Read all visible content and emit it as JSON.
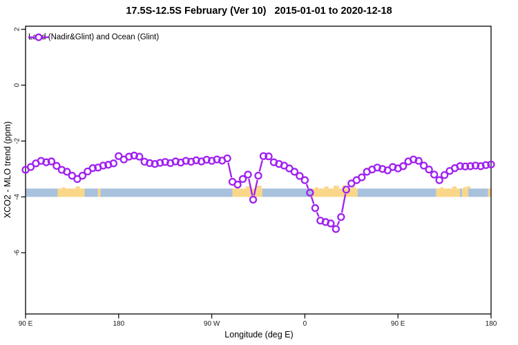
{
  "title": "17.5S-12.5S February (Ver 10)   2015-01-01 to 2020-12-18",
  "legend": {
    "label": "Land (Nadir&Glint) and Ocean (Glint)"
  },
  "colors": {
    "line": "#A020F0",
    "marker": "#A020F0",
    "ocean_band": "#A8C2DD",
    "land_band": "#FAD689",
    "axis": "#000000",
    "tick_label": "#1a1a1a",
    "background": "#ffffff"
  },
  "chart_data": {
    "type": "line",
    "title": "17.5S-12.5S February (Ver 10)   2015-01-01 to 2020-12-18",
    "xlabel": "Longitude (deg E)",
    "ylabel": "XCO2 - MLO trend (ppm)",
    "xlim": [
      90,
      540
    ],
    "ylim": [
      -8.19,
      2.11
    ],
    "grid": false,
    "legend_position": "top-left",
    "xticks": [
      {
        "value": 90,
        "label": "90 E"
      },
      {
        "value": 180,
        "label": "180"
      },
      {
        "value": 270,
        "label": "90 W"
      },
      {
        "value": 360,
        "label": "0"
      },
      {
        "value": 450,
        "label": "90 E"
      },
      {
        "value": 540,
        "label": "180"
      }
    ],
    "yticks": [
      {
        "value": 2,
        "label": "2"
      },
      {
        "value": 0,
        "label": "0"
      },
      {
        "value": -2,
        "label": "-2"
      },
      {
        "value": -4,
        "label": "-4"
      },
      {
        "value": -6,
        "label": "-6"
      }
    ],
    "series": [
      {
        "name": "Land (Nadir&Glint) and Ocean (Glint)",
        "marker": "open-circle",
        "x": [
          90,
          95,
          100,
          105,
          110,
          115,
          120,
          125,
          130,
          135,
          140,
          145,
          150,
          155,
          160,
          165,
          170,
          175,
          180,
          185,
          190,
          195,
          200,
          205,
          210,
          215,
          220,
          225,
          230,
          235,
          240,
          245,
          250,
          255,
          260,
          265,
          270,
          275,
          280,
          285,
          290,
          295,
          300,
          305,
          310,
          315,
          320,
          325,
          330,
          335,
          340,
          345,
          350,
          355,
          360,
          365,
          370,
          375,
          380,
          385,
          390,
          395,
          400,
          405,
          410,
          415,
          420,
          425,
          430,
          435,
          440,
          445,
          450,
          455,
          460,
          465,
          470,
          475,
          480,
          485,
          490,
          495,
          500,
          505,
          510,
          515,
          520,
          525,
          530,
          535,
          540
        ],
        "y": [
          -3.03,
          -2.93,
          -2.8,
          -2.71,
          -2.76,
          -2.73,
          -2.89,
          -3.03,
          -3.1,
          -3.24,
          -3.36,
          -3.24,
          -3.09,
          -2.97,
          -2.95,
          -2.88,
          -2.85,
          -2.8,
          -2.54,
          -2.66,
          -2.56,
          -2.52,
          -2.56,
          -2.74,
          -2.79,
          -2.82,
          -2.78,
          -2.75,
          -2.79,
          -2.73,
          -2.77,
          -2.71,
          -2.74,
          -2.69,
          -2.73,
          -2.67,
          -2.71,
          -2.66,
          -2.7,
          -2.62,
          -3.46,
          -3.56,
          -3.36,
          -3.2,
          -4.1,
          -3.24,
          -2.54,
          -2.55,
          -2.76,
          -2.82,
          -2.88,
          -2.98,
          -3.1,
          -3.25,
          -3.4,
          -3.85,
          -4.4,
          -4.85,
          -4.9,
          -4.95,
          -5.15,
          -4.72,
          -3.74,
          -3.52,
          -3.4,
          -3.3,
          -3.1,
          -3.02,
          -2.95,
          -3.0,
          -3.05,
          -2.93,
          -2.98,
          -2.9,
          -2.73,
          -2.66,
          -2.71,
          -2.88,
          -3.02,
          -3.2,
          -3.4,
          -3.22,
          -3.07,
          -2.97,
          -2.9,
          -2.91,
          -2.9,
          -2.88,
          -2.9,
          -2.86,
          -2.84
        ]
      }
    ],
    "surface_band": {
      "description": "land/ocean indicator strip",
      "y_top": -3.7,
      "y_bottom": -4.0,
      "segments": [
        {
          "type": "ocean",
          "from": 90,
          "to": 121
        },
        {
          "type": "land",
          "from": 121,
          "to": 147
        },
        {
          "type": "ocean",
          "from": 147,
          "to": 160
        },
        {
          "type": "land",
          "from": 160,
          "to": 162.5
        },
        {
          "type": "ocean",
          "from": 162.5,
          "to": 290
        },
        {
          "type": "land",
          "from": 290,
          "to": 319
        },
        {
          "type": "ocean",
          "from": 319,
          "to": 367
        },
        {
          "type": "land",
          "from": 367,
          "to": 411
        },
        {
          "type": "ocean",
          "from": 411,
          "to": 487
        },
        {
          "type": "land",
          "from": 487,
          "to": 510
        },
        {
          "type": "ocean",
          "from": 510,
          "to": 512
        },
        {
          "type": "land",
          "from": 512,
          "to": 518
        },
        {
          "type": "ocean",
          "from": 518,
          "to": 537
        },
        {
          "type": "land",
          "from": 537,
          "to": 540
        }
      ]
    }
  }
}
